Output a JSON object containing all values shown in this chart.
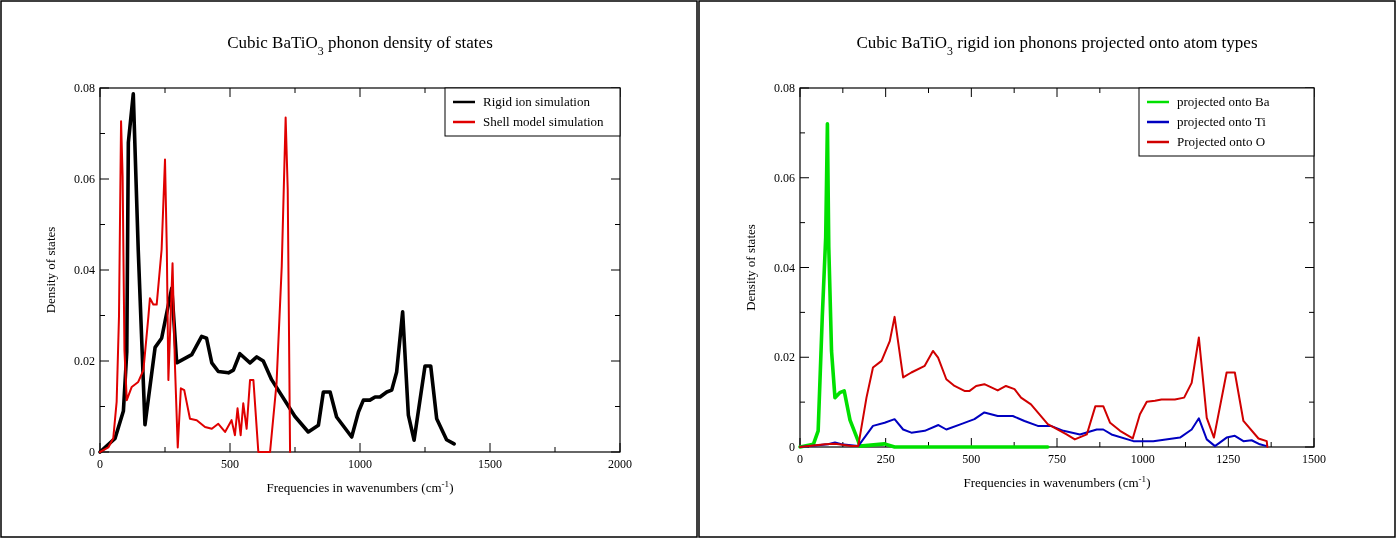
{
  "chart_data": [
    {
      "type": "line",
      "title": "Cubic BaTiO$_{3}$ phonon density of states",
      "xlabel": "Frequencies in wavenumbers (cm$^{-1}$)",
      "ylabel": "Density of states",
      "xlim": [
        0,
        2000
      ],
      "ylim": [
        0,
        0.08
      ],
      "xticks": [
        0,
        {
          "value": 250,
          "label": null
        },
        500,
        {
          "value": 750,
          "label": null
        },
        1000,
        {
          "value": 1250,
          "label": null
        },
        1500,
        {
          "value": 1750,
          "label": null
        },
        2000
      ],
      "yticks": [
        0,
        {
          "value": 0.01,
          "label": null
        },
        0.02,
        {
          "value": 0.03,
          "label": null
        },
        0.04,
        {
          "value": 0.05,
          "label": null
        },
        0.06,
        {
          "value": 0.07,
          "label": null
        },
        0.08
      ],
      "legend": "top right",
      "series": [
        {
          "name": "Rigid ion simulation",
          "color": "#000000",
          "x": [
            0,
            58,
            90,
            103,
            109,
            128,
            147,
            173,
            212,
            237,
            276,
            295,
            353,
            391,
            410,
            430,
            455,
            494,
            513,
            538,
            577,
            603,
            628,
            660,
            750,
            801,
            840,
            859,
            885,
            910,
            968,
            994,
            1013,
            1038,
            1058,
            1077,
            1103,
            1122,
            1141,
            1164,
            1186,
            1208,
            1250,
            1272,
            1295,
            1333,
            1362
          ],
          "values": [
            0,
            0.003,
            0.009,
            0.022,
            0.068,
            0.0787,
            0.0445,
            0.006,
            0.023,
            0.025,
            0.036,
            0.0196,
            0.0214,
            0.0254,
            0.025,
            0.0196,
            0.0177,
            0.0174,
            0.018,
            0.0216,
            0.0196,
            0.0209,
            0.02,
            0.0159,
            0.0078,
            0.0044,
            0.0059,
            0.0132,
            0.0132,
            0.0077,
            0.0033,
            0.0088,
            0.0114,
            0.0114,
            0.0121,
            0.0121,
            0.0132,
            0.0136,
            0.0176,
            0.0308,
            0.0081,
            0.0026,
            0.0189,
            0.0189,
            0.0073,
            0.0027,
            0.0018
          ]
        },
        {
          "name": "Shell model simulation",
          "color": "#e00000",
          "x": [
            0,
            32,
            51,
            64,
            73,
            81,
            87,
            94,
            103,
            122,
            147,
            167,
            186,
            192,
            205,
            218,
            237,
            250,
            257,
            263,
            279,
            288,
            299,
            311,
            324,
            346,
            372,
            404,
            430,
            455,
            481,
            506,
            519,
            529,
            541,
            551,
            564,
            577,
            590,
            609,
            654,
            679,
            699,
            714,
            722,
            731
          ],
          "values": [
            0,
            0.001,
            0.003,
            0.011,
            0.0297,
            0.0727,
            0.0606,
            0.0224,
            0.0114,
            0.0143,
            0.0154,
            0.018,
            0.0297,
            0.0338,
            0.0324,
            0.0324,
            0.0445,
            0.0643,
            0.0445,
            0.0158,
            0.0415,
            0.0195,
            0.001,
            0.014,
            0.0136,
            0.0073,
            0.007,
            0.0055,
            0.0051,
            0.0062,
            0.0044,
            0.007,
            0.0037,
            0.0096,
            0.0037,
            0.0107,
            0.0051,
            0.0158,
            0.0158,
            0,
            0,
            0.0151,
            0.0408,
            0.0735,
            0.0577,
            0
          ]
        }
      ]
    },
    {
      "type": "line",
      "title": "Cubic BaTiO$_{3}$ rigid ion phonons projected onto atom types",
      "xlabel": "Frequencies in wavenumbers (cm$^{-1}$)",
      "ylabel": "Density of states",
      "xlim": [
        0,
        1500
      ],
      "ylim": [
        0,
        0.08
      ],
      "xticks": [
        0,
        {
          "value": 125,
          "label": null
        },
        250,
        {
          "value": 375,
          "label": null
        },
        500,
        {
          "value": 625,
          "label": null
        },
        750,
        {
          "value": 875,
          "label": null
        },
        1000,
        {
          "value": 1125,
          "label": null
        },
        1250,
        {
          "value": 1375,
          "label": null
        },
        1500
      ],
      "yticks": [
        0,
        {
          "value": 0.01,
          "label": null
        },
        0.02,
        {
          "value": 0.03,
          "label": null
        },
        0.04,
        {
          "value": 0.05,
          "label": null
        },
        0.06,
        {
          "value": 0.07,
          "label": null
        },
        0.08
      ],
      "legend": "top right",
      "series": [
        {
          "name": "projected onto Ba",
          "color": "#00e000",
          "x": [
            0,
            39,
            53,
            65,
            75,
            80,
            84,
            92,
            102,
            116,
            129,
            146,
            170,
            175,
            247,
            276,
            723
          ],
          "values": [
            0,
            0.0006,
            0.0036,
            0.029,
            0.0467,
            0.072,
            0.0445,
            0.0214,
            0.011,
            0.0121,
            0.0125,
            0.006,
            0.0013,
            0.0002,
            0.0007,
            0,
            0
          ]
        },
        {
          "name": "projected onto Ti",
          "color": "#0000c0",
          "x": [
            0,
            82,
            102,
            121,
            170,
            213,
            247,
            276,
            301,
            325,
            364,
            404,
            427,
            470,
            509,
            538,
            577,
            621,
            655,
            694,
            732,
            769,
            817,
            866,
            885,
            909,
            973,
            1031,
            1109,
            1143,
            1164,
            1187,
            1211,
            1245,
            1269,
            1294,
            1318,
            1342,
            1362
          ],
          "values": [
            0,
            0.0006,
            0.001,
            0.0006,
            0.0002,
            0.0047,
            0.0054,
            0.0062,
            0.0039,
            0.0032,
            0.0036,
            0.0049,
            0.0039,
            0.0051,
            0.0062,
            0.0077,
            0.0069,
            0.0069,
            0.0058,
            0.0047,
            0.0047,
            0.0036,
            0.0028,
            0.0039,
            0.0039,
            0.0028,
            0.0013,
            0.0013,
            0.0021,
            0.0039,
            0.0064,
            0.0017,
            0.0002,
            0.0021,
            0.0025,
            0.0013,
            0.0015,
            0.0006,
            0.0002
          ]
        },
        {
          "name": "Projected onto O",
          "color": "#d00000",
          "x": [
            0,
            73,
            102,
            150,
            170,
            194,
            213,
            238,
            262,
            276,
            301,
            325,
            364,
            388,
            403,
            427,
            451,
            480,
            495,
            514,
            538,
            577,
            601,
            626,
            645,
            674,
            723,
            778,
            802,
            837,
            862,
            885,
            905,
            934,
            971,
            992,
            1012,
            1036,
            1055,
            1094,
            1121,
            1143,
            1164,
            1187,
            1208,
            1245,
            1269,
            1294,
            1338,
            1362,
            1364
          ],
          "values": [
            0,
            0.0006,
            0.0007,
            0.0002,
            0.0002,
            0.011,
            0.0177,
            0.0192,
            0.0236,
            0.029,
            0.0155,
            0.0166,
            0.0181,
            0.0214,
            0.0199,
            0.0151,
            0.0136,
            0.0125,
            0.0125,
            0.0136,
            0.014,
            0.0126,
            0.0136,
            0.0129,
            0.011,
            0.0095,
            0.0051,
            0.0028,
            0.0017,
            0.0028,
            0.0091,
            0.0091,
            0.0054,
            0.0036,
            0.0019,
            0.0073,
            0.0101,
            0.0103,
            0.0106,
            0.0106,
            0.011,
            0.0143,
            0.0244,
            0.0065,
            0.0021,
            0.0166,
            0.0166,
            0.0058,
            0.0019,
            0.0013,
            0
          ]
        }
      ]
    }
  ]
}
